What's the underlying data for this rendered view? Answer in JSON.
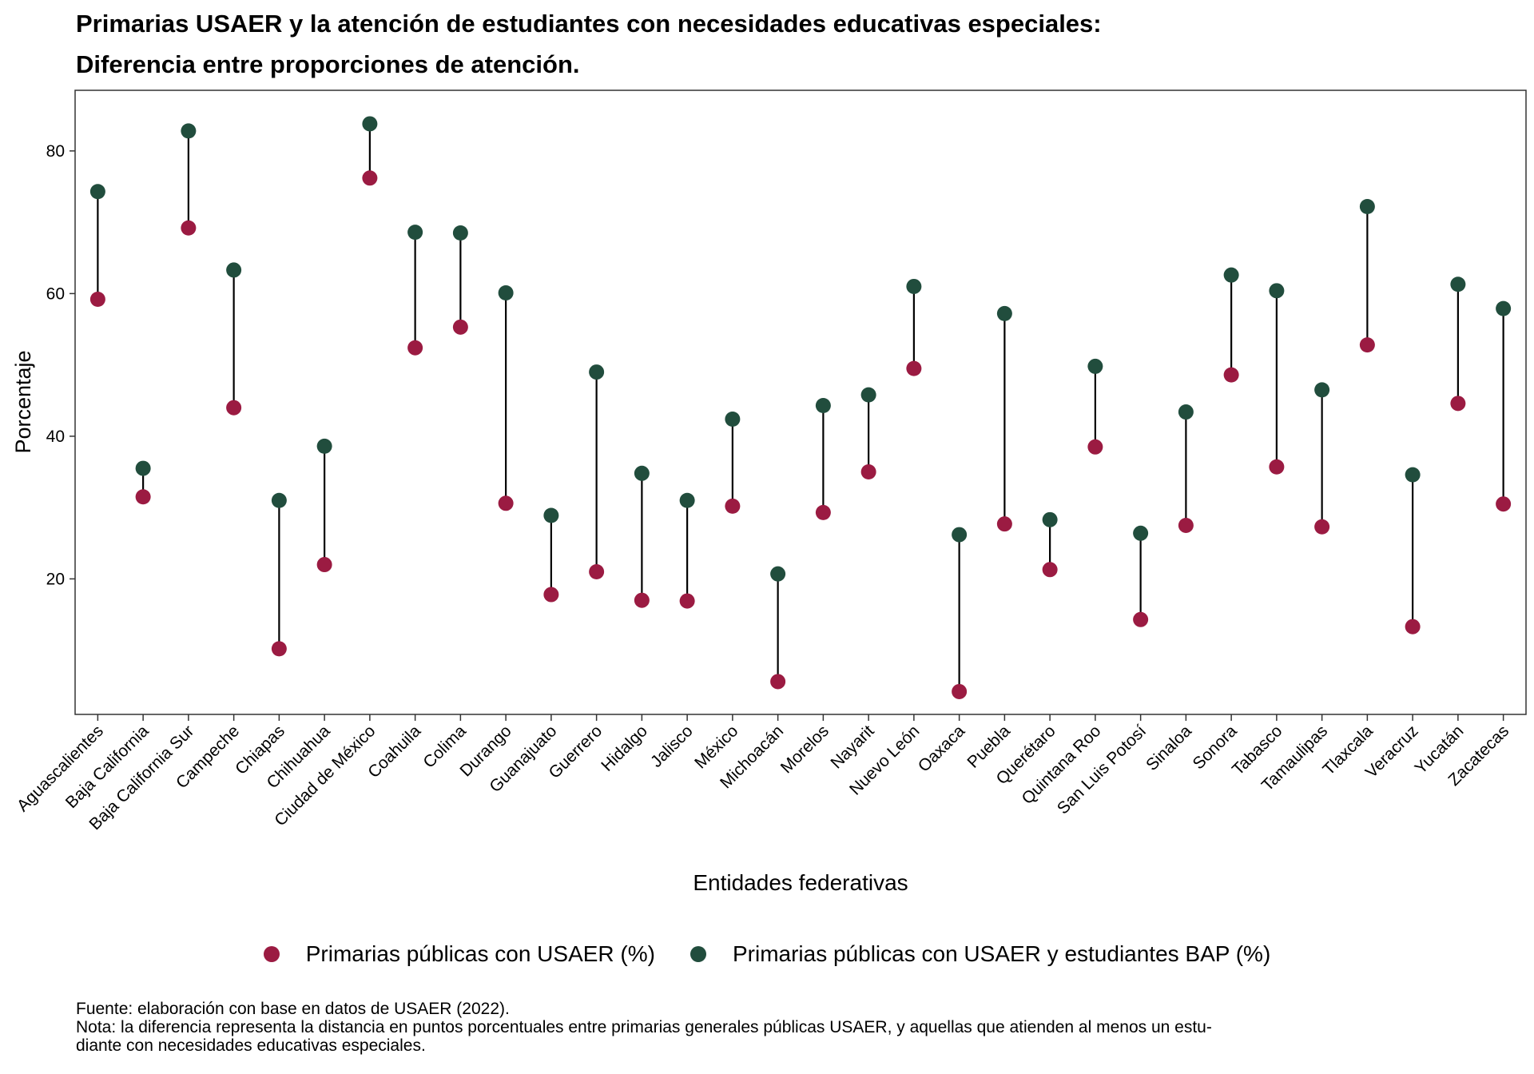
{
  "title": {
    "line1": "Primarias USAER y la atención de estudiantes con necesidades educativas especiales:",
    "line2": "Diferencia entre proporciones de atención."
  },
  "chart_data": {
    "type": "dumbbell",
    "xlabel": "Entidades federativas",
    "ylabel": "Porcentaje",
    "ylim": [
      1,
      88.5
    ],
    "yticks": [
      20,
      40,
      60,
      80
    ],
    "grid": false,
    "legend_position": "bottom",
    "colors": {
      "usaer": "#9b1b42",
      "bap": "#214d3d"
    },
    "categories": [
      "Aguascalientes",
      "Baja California",
      "Baja California Sur",
      "Campeche",
      "Chiapas",
      "Chihuahua",
      "Ciudad de México",
      "Coahuila",
      "Colima",
      "Durango",
      "Guanajuato",
      "Guerrero",
      "Hidalgo",
      "Jalisco",
      "México",
      "Michoacán",
      "Morelos",
      "Nayarit",
      "Nuevo León",
      "Oaxaca",
      "Puebla",
      "Querétaro",
      "Quintana Roo",
      "San Luis Potosí",
      "Sinaloa",
      "Sonora",
      "Tabasco",
      "Tamaulipas",
      "Tlaxcala",
      "Veracruz",
      "Yucatán",
      "Zacatecas"
    ],
    "series": [
      {
        "name": "Primarias públicas con USAER (%)",
        "values": [
          59.2,
          31.5,
          69.2,
          44.0,
          10.2,
          22.0,
          76.2,
          52.4,
          55.3,
          30.6,
          17.8,
          21.0,
          17.0,
          16.9,
          30.2,
          5.6,
          29.3,
          35.0,
          49.5,
          4.2,
          27.7,
          21.3,
          38.5,
          14.3,
          27.5,
          48.6,
          35.7,
          27.3,
          52.8,
          13.3,
          44.6,
          30.5
        ]
      },
      {
        "name": "Primarias públicas con USAER y estudiantes BAP (%)",
        "values": [
          74.3,
          35.5,
          82.8,
          63.3,
          31.0,
          38.6,
          83.8,
          68.6,
          68.5,
          60.1,
          28.9,
          49.0,
          34.8,
          31.0,
          42.4,
          20.7,
          44.3,
          45.8,
          61.0,
          26.2,
          57.2,
          28.3,
          49.8,
          26.4,
          43.4,
          62.6,
          60.4,
          46.5,
          72.2,
          34.6,
          61.3,
          57.9
        ]
      }
    ]
  },
  "footer": {
    "source": "Fuente: elaboración con base en datos de USAER (2022).",
    "note_line1": "Nota: la diferencia representa la distancia en puntos porcentuales entre primarias generales públicas USAER, y aquellas que atienden al menos un estu-",
    "note_line2": "diante con necesidades educativas especiales."
  }
}
